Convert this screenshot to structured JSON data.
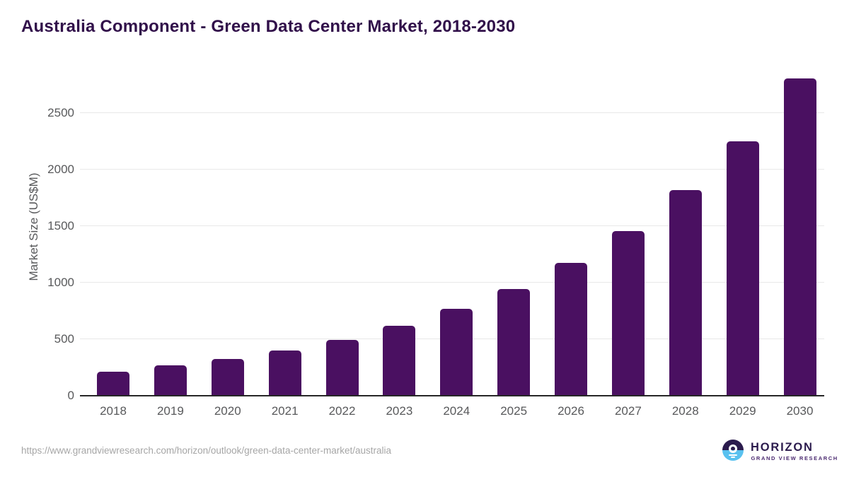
{
  "header": {
    "title": "Australia Component - Green Data Center Market, 2018-2030",
    "title_color": "#31104a"
  },
  "chart_data": {
    "type": "bar",
    "title": "Australia Component - Green Data Center Market, 2018-2030",
    "categories": [
      "2018",
      "2019",
      "2020",
      "2021",
      "2022",
      "2023",
      "2024",
      "2025",
      "2026",
      "2027",
      "2028",
      "2029",
      "2030"
    ],
    "values": [
      205,
      260,
      320,
      395,
      490,
      610,
      760,
      940,
      1170,
      1450,
      1810,
      2245,
      2800
    ],
    "xlabel": "",
    "ylabel": "Market Size (US$M)",
    "ylim": [
      0,
      2900
    ],
    "yticks": [
      0,
      500,
      1000,
      1500,
      2000,
      2500
    ],
    "grid": true,
    "legend": false,
    "bar_color": "#4a1061",
    "axis_text_color": "#58595b",
    "gridline_color": "#e8e8e8",
    "axis_line_color": "#262626"
  },
  "footer": {
    "source_url": "https://www.grandviewresearch.com/horizon/outlook/green-data-center-market/australia",
    "logo": {
      "brand": "HORIZON",
      "sub_brand": "GRAND VIEW RESEARCH",
      "circle_top_color": "#2b1b4d",
      "circle_bottom_color": "#59c1ef"
    }
  }
}
